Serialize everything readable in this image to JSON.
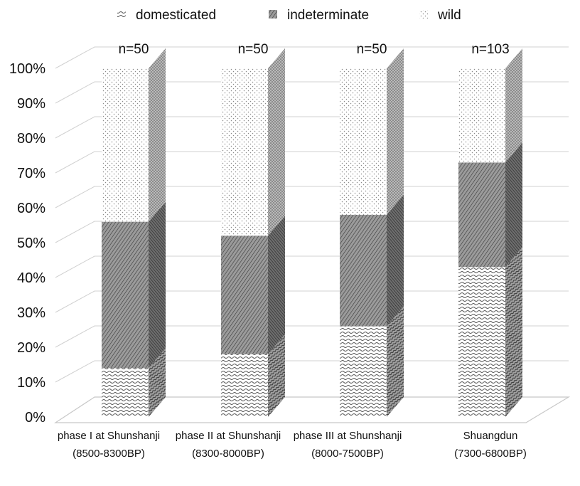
{
  "chart_data": {
    "type": "bar",
    "stacked": true,
    "three_d": true,
    "categories": [
      [
        "phase I at Shunshanji",
        "(8500-8300BP)"
      ],
      [
        "phase II at Shunshanji",
        "(8300-8000BP)"
      ],
      [
        "phase III at Shunshanji",
        "(8000-7500BP)"
      ],
      [
        "Shuangdun",
        "(7300-6800BP)"
      ]
    ],
    "sample_sizes": [
      "n=50",
      "n=50",
      "n=50",
      "n=103"
    ],
    "series": [
      {
        "name": "domesticated",
        "values": [
          14,
          18,
          26,
          43
        ],
        "pattern": "waves"
      },
      {
        "name": "indeterminate",
        "values": [
          42,
          34,
          32,
          30
        ],
        "pattern": "diagonal"
      },
      {
        "name": "wild",
        "values": [
          44,
          48,
          42,
          27
        ],
        "pattern": "dots"
      }
    ],
    "ylim": [
      0,
      100
    ],
    "yticks": [
      "0%",
      "10%",
      "20%",
      "30%",
      "40%",
      "50%",
      "60%",
      "70%",
      "80%",
      "90%",
      "100%"
    ],
    "grid": true,
    "legend_position": "top"
  }
}
